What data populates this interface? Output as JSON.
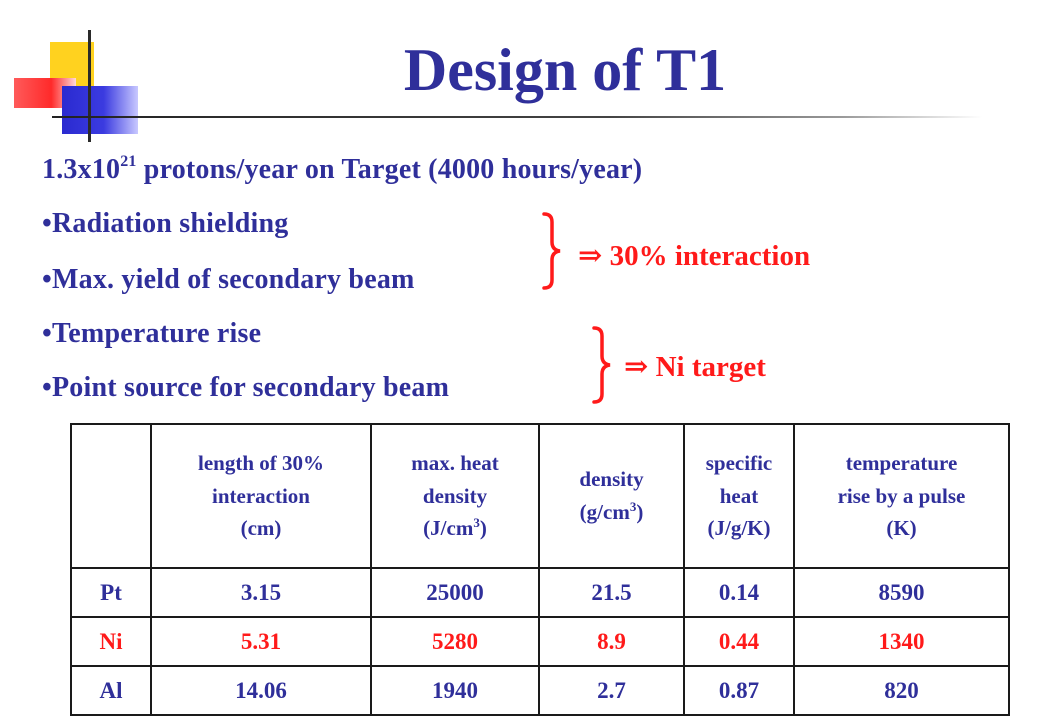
{
  "slide": {
    "title": "Design of T1",
    "intro": {
      "prefix": "1.3x10",
      "exponent": "21",
      "suffix": " protons/year on Target (4000 hours/year)"
    },
    "bullets": [
      "•Radiation shielding",
      "•Max. yield of secondary beam",
      "•Temperature rise",
      "•Point source for secondary beam"
    ],
    "notes": [
      {
        "arrow": "⇒",
        "text": "30% interaction"
      },
      {
        "arrow": "⇒",
        "text": "Ni target"
      }
    ],
    "colors": {
      "title": "#2f2f9a",
      "text": "#2f2f9a",
      "highlight": "#ff1a1a",
      "deco_yellow": "#ffd21f",
      "deco_red": "#ff2a2a",
      "deco_blue": "#2a2ad0"
    }
  },
  "table": {
    "headers": [
      {
        "lines": [
          ""
        ]
      },
      {
        "lines": [
          "length of 30%",
          "interaction",
          "(cm)"
        ]
      },
      {
        "lines": [
          "max. heat",
          "density",
          "(J/cm",
          "3",
          ")"
        ]
      },
      {
        "lines": [
          "density",
          "(g/cm",
          "3",
          ")"
        ]
      },
      {
        "lines": [
          "specific",
          "heat",
          "(J/g/K)"
        ]
      },
      {
        "lines": [
          "temperature",
          "rise by a pulse",
          "(K)"
        ]
      }
    ],
    "rows": [
      {
        "material": "Pt",
        "cells": [
          "3.15",
          "25000",
          "21.5",
          "0.14",
          "8590"
        ]
      },
      {
        "material": "Ni",
        "cells": [
          "5.31",
          "5280",
          "8.9",
          "0.44",
          "1340"
        ]
      },
      {
        "material": "Al",
        "cells": [
          "14.06",
          "1940",
          "2.7",
          "0.87",
          "820"
        ]
      }
    ]
  }
}
